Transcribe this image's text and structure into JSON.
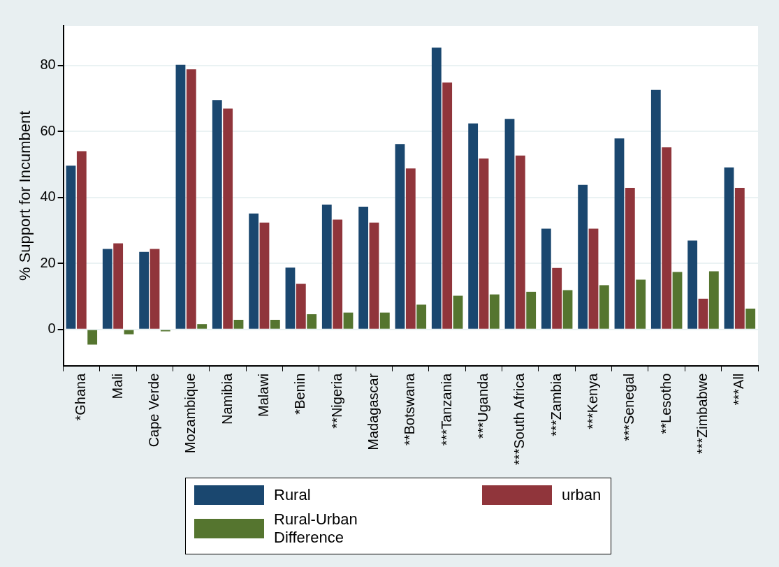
{
  "chart_data": {
    "type": "bar",
    "ylabel": "% Support for Incumbent",
    "categories": [
      "*Ghana",
      "Mali",
      "Cape Verde",
      "Mozambique",
      "Namibia",
      "Malawi",
      "*Benin",
      "**Nigeria",
      "Madagascar",
      "**Botswana",
      "***Tanzania",
      "***Uganda",
      "***South Africa",
      "***Zambia",
      "***Kenya",
      "***Senegal",
      "**Lesotho",
      "***Zimbabwe",
      "***All"
    ],
    "series": [
      {
        "name": "Rural",
        "color": "#1a476f",
        "values": [
          49.6,
          24.4,
          23.5,
          80.2,
          69.5,
          35.1,
          18.7,
          37.8,
          37.2,
          56.2,
          85.4,
          62.4,
          63.8,
          30.5,
          43.8,
          57.9,
          72.6,
          26.9,
          49.1
        ]
      },
      {
        "name": "urban",
        "color": "#90353b",
        "values": [
          54.0,
          26.1,
          24.4,
          78.8,
          66.9,
          32.4,
          13.8,
          33.3,
          32.4,
          48.8,
          74.8,
          51.8,
          52.7,
          18.6,
          30.5,
          42.9,
          55.2,
          9.3,
          42.9
        ]
      },
      {
        "name": "Rural-Urban Difference",
        "color": "#55752f",
        "values": [
          -4.6,
          -1.5,
          -0.6,
          1.6,
          2.9,
          2.9,
          4.6,
          5.1,
          5.1,
          7.5,
          10.2,
          10.6,
          11.4,
          11.9,
          13.4,
          15.1,
          17.4,
          17.6,
          6.3
        ]
      }
    ],
    "ylim": [
      -11,
      92
    ],
    "yticks": [
      0,
      20,
      40,
      60,
      80
    ],
    "grid": "y",
    "legend": "bottom"
  }
}
